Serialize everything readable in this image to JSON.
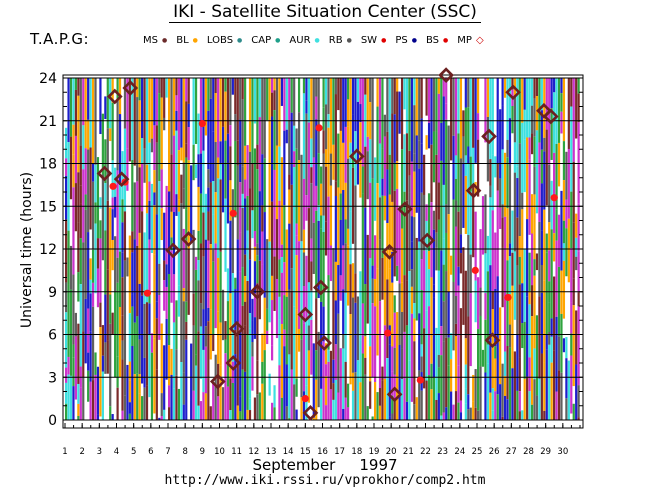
{
  "title": "IKI - Satellite Situation Center (SSC)",
  "tapg_label": "T.A.P.G:",
  "footer_url": "http://www.iki.rssi.ru/vprokhor/comp2.htm",
  "chart_data": {
    "type": "scatter",
    "title": "IKI - Satellite Situation Center (SSC)",
    "xlabel_month": "September",
    "xlabel_year": "1997",
    "ylabel": "Universal time (hours)",
    "xlim": [
      1,
      31
    ],
    "ylim": [
      0,
      24.5
    ],
    "x_ticks": [
      "1",
      "2",
      "3",
      "4",
      "5",
      "6",
      "7",
      "8",
      "9",
      "10",
      "11",
      "12",
      "13",
      "14",
      "15",
      "16",
      "17",
      "18",
      "19",
      "20",
      "21",
      "22",
      "23",
      "24",
      "25",
      "26",
      "27",
      "28",
      "29",
      "30"
    ],
    "y_ticks": [
      "0",
      "3",
      "6",
      "9",
      "12",
      "15",
      "18",
      "21",
      "24"
    ],
    "grid": true,
    "legend": [
      {
        "name": "MS",
        "symbol": "dot",
        "color": "#6b2a2a"
      },
      {
        "name": "BL",
        "symbol": "dot",
        "color": "#ffa500"
      },
      {
        "name": "LOBS",
        "symbol": "dot",
        "color": "#2e8b8b"
      },
      {
        "name": "CAP",
        "symbol": "dot",
        "color": "#1fa08a"
      },
      {
        "name": "AUR",
        "symbol": "dot",
        "color": "#40e0e0"
      },
      {
        "name": "RB",
        "symbol": "dot",
        "color": "#555555"
      },
      {
        "name": "SW",
        "symbol": "dot",
        "color": "#e00000"
      },
      {
        "name": "PS",
        "symbol": "dot",
        "color": "#00008b"
      },
      {
        "name": "BS",
        "symbol": "dot",
        "color": "#e00000"
      },
      {
        "name": "MP",
        "symbol": "diamond",
        "color": "#cc0000"
      }
    ],
    "strip_colors": [
      "#7a2a2a",
      "#1e1ecc",
      "#2fa33f",
      "#3ee0e0",
      "#606060",
      "#ffa500",
      "#cc33cc"
    ],
    "series": [
      {
        "name": "MP",
        "points": [
          [
            3.3,
            17.3
          ],
          [
            3.9,
            22.7
          ],
          [
            4.3,
            16.9
          ],
          [
            4.8,
            23.3
          ],
          [
            7.3,
            11.9
          ],
          [
            8.2,
            12.7
          ],
          [
            9.9,
            2.7
          ],
          [
            10.8,
            4.0
          ],
          [
            11.0,
            6.4
          ],
          [
            12.2,
            9.0
          ],
          [
            15.0,
            7.4
          ],
          [
            15.3,
            0.5
          ],
          [
            15.9,
            9.3
          ],
          [
            16.1,
            5.4
          ],
          [
            18.0,
            18.5
          ],
          [
            19.9,
            11.8
          ],
          [
            20.2,
            1.8
          ],
          [
            20.8,
            14.8
          ],
          [
            22.1,
            12.6
          ],
          [
            23.2,
            24.2
          ],
          [
            24.8,
            16.1
          ],
          [
            25.7,
            19.9
          ],
          [
            25.9,
            5.6
          ],
          [
            27.1,
            23.0
          ],
          [
            28.9,
            21.7
          ],
          [
            29.3,
            21.3
          ]
        ]
      },
      {
        "name": "BS",
        "points": [
          [
            3.8,
            16.4
          ],
          [
            4.5,
            16.7
          ],
          [
            5.8,
            8.9
          ],
          [
            9.0,
            20.8
          ],
          [
            10.8,
            14.5
          ],
          [
            15.0,
            1.5
          ],
          [
            15.8,
            20.5
          ],
          [
            19.8,
            6.1
          ],
          [
            21.7,
            2.8
          ],
          [
            24.9,
            10.5
          ],
          [
            26.8,
            8.6
          ],
          [
            29.5,
            15.6
          ]
        ]
      }
    ]
  }
}
